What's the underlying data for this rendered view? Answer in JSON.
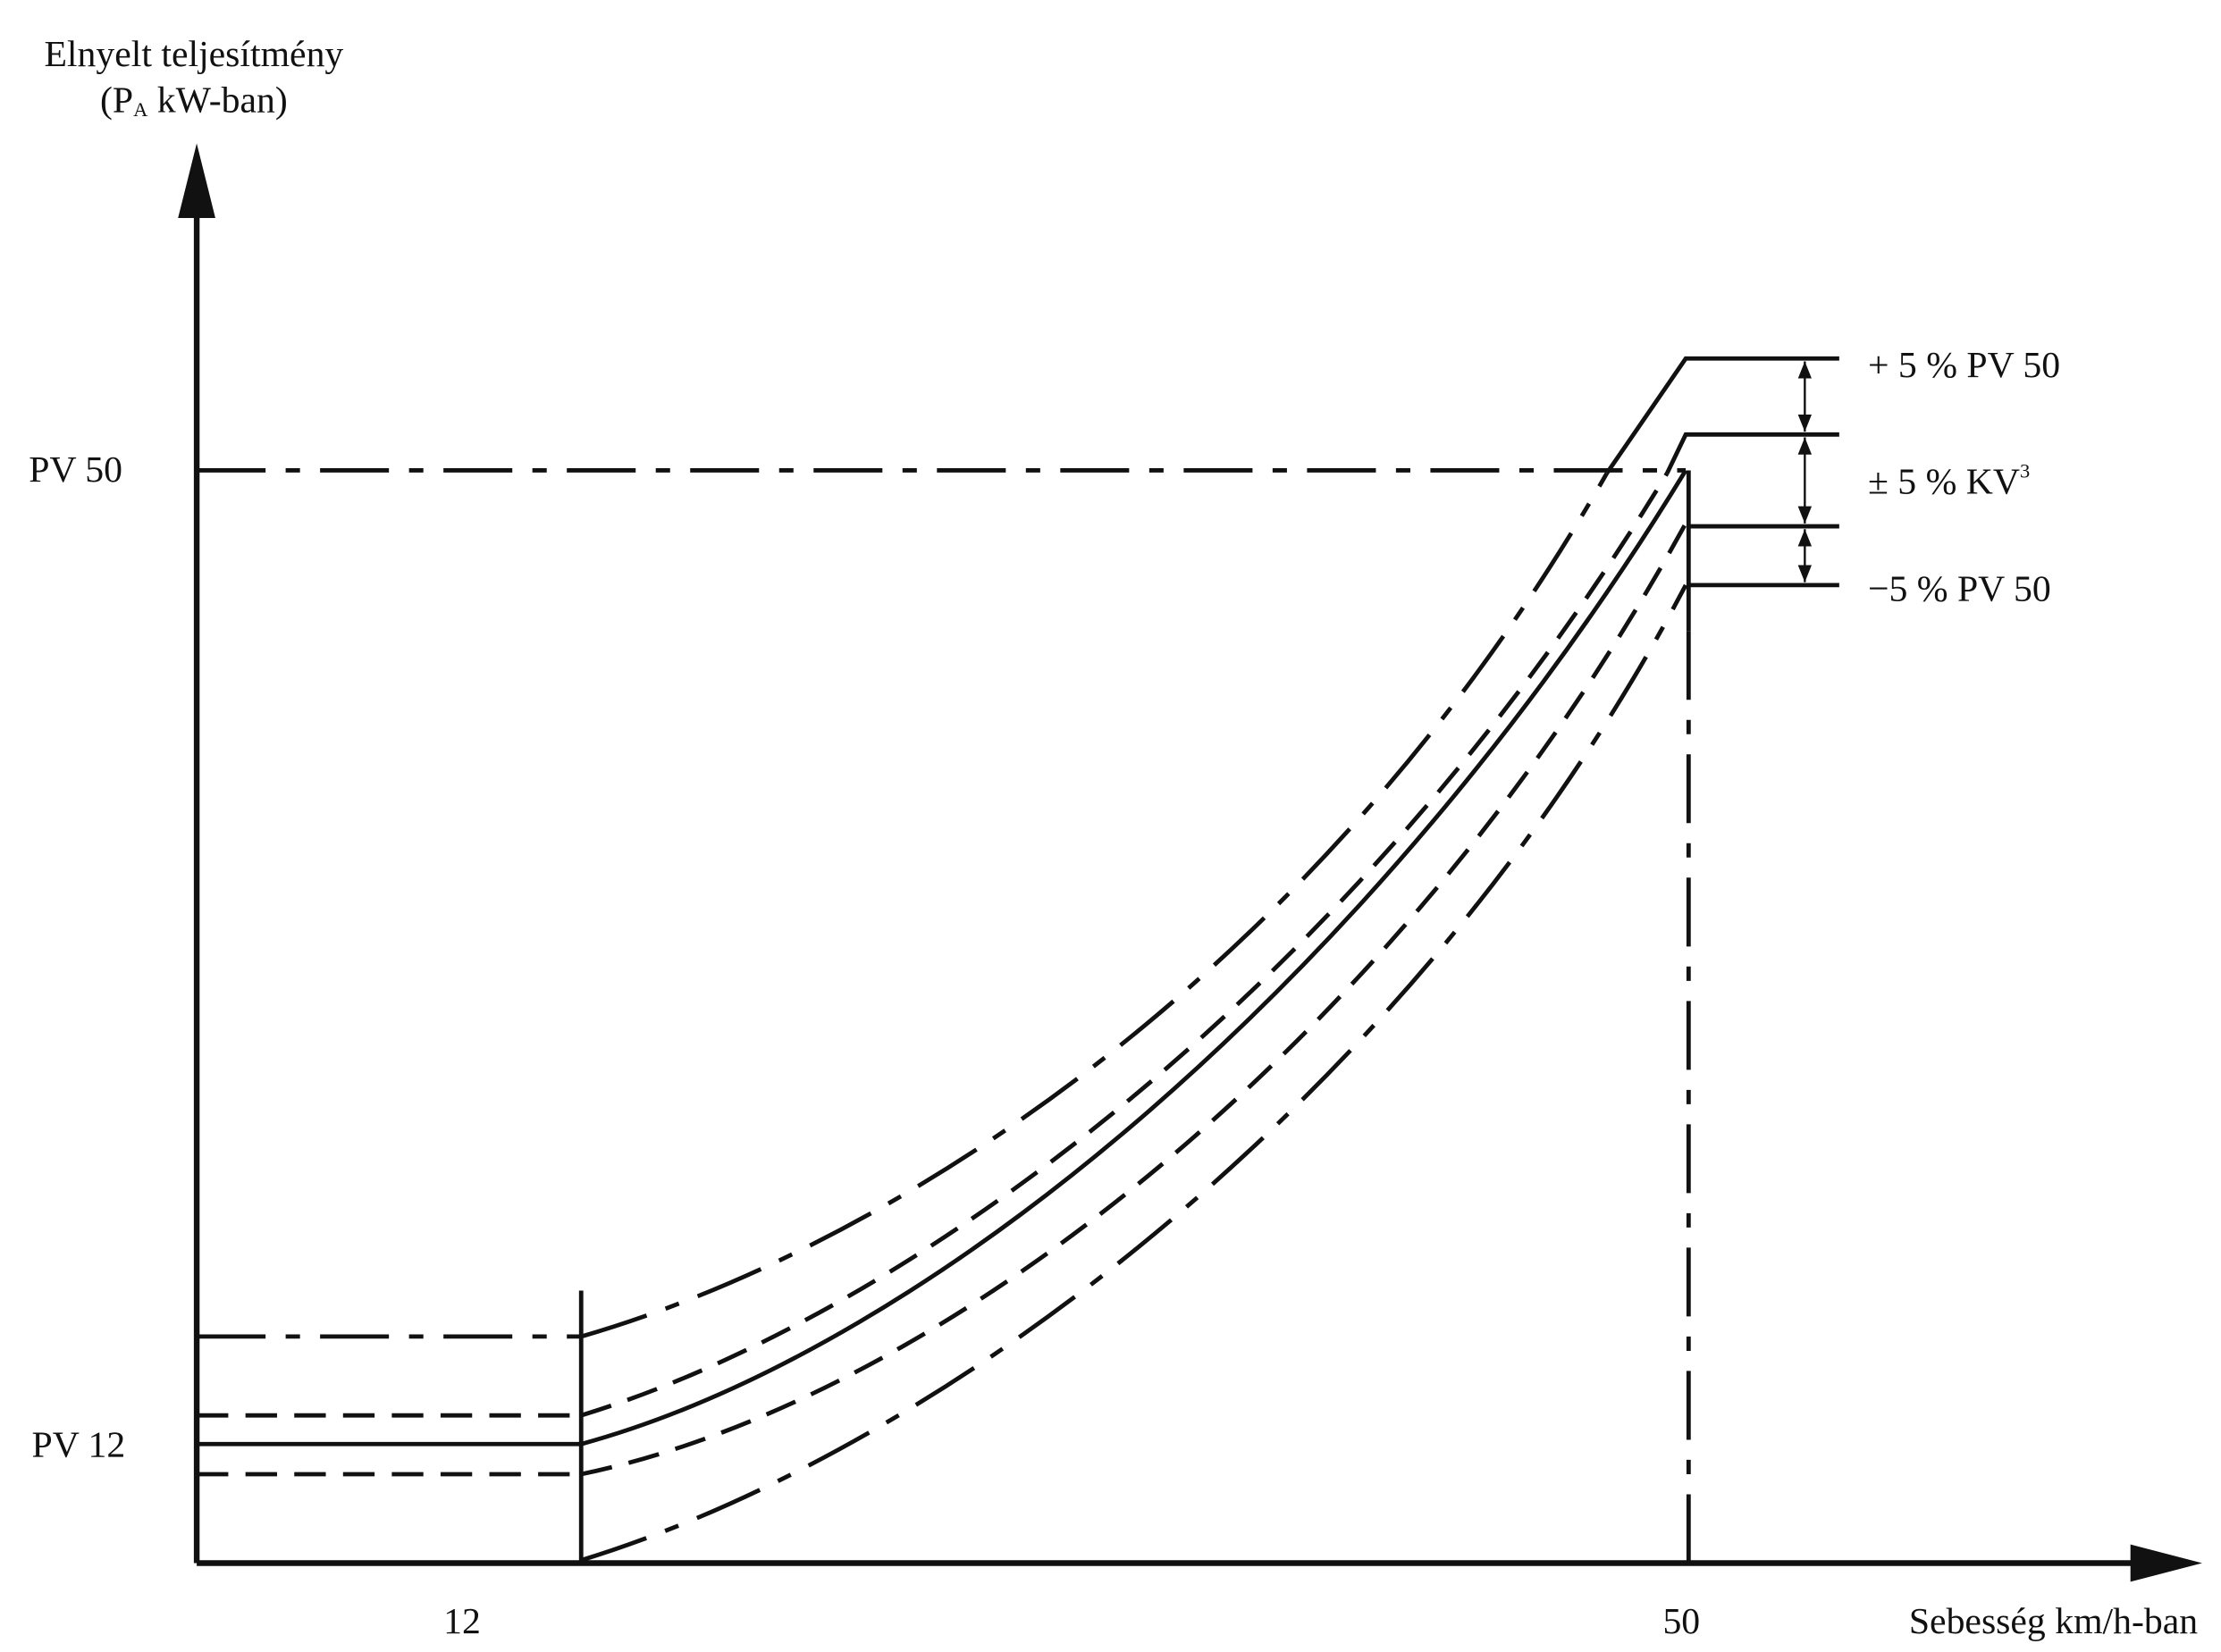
{
  "y_axis_label": {
    "line1": "Elnyelt teljesítmény",
    "line2_start": "(P",
    "line2_subscript": "A",
    "line2_end": " kW-ban)"
  },
  "x_axis_label": "Sebesség km/h-ban",
  "y_marks": [
    "PV 50",
    "PV 12"
  ],
  "x_marks": [
    "12",
    "50"
  ],
  "annotations": {
    "upper": "+ 5 % PV 50",
    "middle": "± 5 % KV",
    "middle_superscript": "3",
    "lower": "−5 % PV 50"
  }
}
